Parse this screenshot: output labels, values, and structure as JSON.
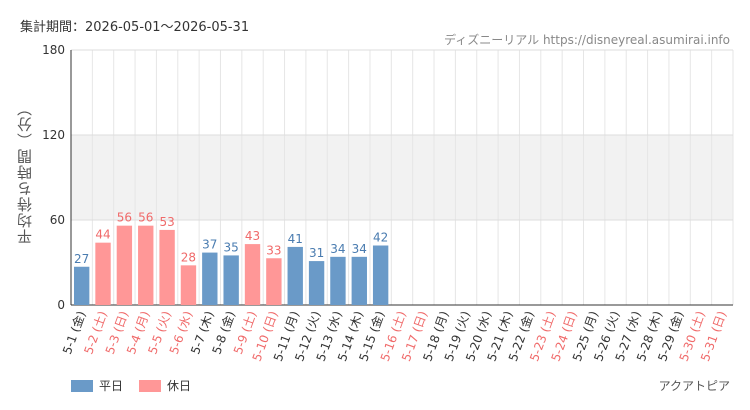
{
  "header": {
    "period_text": "集計期間：2026-05-01〜2026-05-31",
    "source_text": "ディズニーリアル https://disneyreal.asumirai.info"
  },
  "footer": {
    "facility": "アクアトピア"
  },
  "colors": {
    "weekday": "#6a9ac8",
    "holiday": "#ff9797",
    "weekday_label": "#4a7cb0",
    "holiday_label": "#f06a6a"
  },
  "chart_data": {
    "type": "bar",
    "ylabel": "平均待ち時間（分）",
    "ylim": [
      0,
      180
    ],
    "yticks": [
      0,
      60,
      120,
      180
    ],
    "grid": true,
    "legend_position": "bottom-left",
    "legend": [
      "平日",
      "休日"
    ],
    "categories": [
      "5-1 (金)",
      "5-2 (土)",
      "5-3 (日)",
      "5-4 (月)",
      "5-5 (火)",
      "5-6 (水)",
      "5-7 (木)",
      "5-8 (金)",
      "5-9 (土)",
      "5-10 (日)",
      "5-11 (月)",
      "5-12 (火)",
      "5-13 (水)",
      "5-14 (木)",
      "5-15 (金)",
      "5-16 (土)",
      "5-17 (日)",
      "5-18 (月)",
      "5-19 (火)",
      "5-20 (水)",
      "5-21 (木)",
      "5-22 (金)",
      "5-23 (土)",
      "5-24 (日)",
      "5-25 (月)",
      "5-26 (火)",
      "5-27 (水)",
      "5-28 (木)",
      "5-29 (金)",
      "5-30 (土)",
      "5-31 (日)"
    ],
    "values": [
      27,
      44,
      56,
      56,
      53,
      28,
      37,
      35,
      43,
      33,
      41,
      31,
      34,
      34,
      42,
      null,
      null,
      null,
      null,
      null,
      null,
      null,
      null,
      null,
      null,
      null,
      null,
      null,
      null,
      null,
      null
    ],
    "day_type": [
      "平日",
      "休日",
      "休日",
      "休日",
      "休日",
      "休日",
      "平日",
      "平日",
      "休日",
      "休日",
      "平日",
      "平日",
      "平日",
      "平日",
      "平日",
      "休日",
      "休日",
      "平日",
      "平日",
      "平日",
      "平日",
      "平日",
      "休日",
      "休日",
      "平日",
      "平日",
      "平日",
      "平日",
      "平日",
      "休日",
      "休日"
    ]
  }
}
